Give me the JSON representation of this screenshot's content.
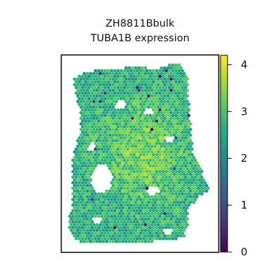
{
  "chart_data": {
    "type": "heatmap",
    "title": "ZH8811Bbulk",
    "subtitle": "TUBA1B expression",
    "xlabel": "",
    "ylabel": "",
    "colormap": "viridis",
    "colorbar": {
      "range": [
        0,
        4.2
      ],
      "ticks": [
        0,
        1,
        2,
        3,
        4
      ],
      "tick_labels": [
        "0",
        "1",
        "2",
        "3",
        "4"
      ],
      "placement": "right"
    },
    "spot_value_range_typical": [
      2.0,
      3.8
    ],
    "low_outlier_spots_approx": 25,
    "frame": "box"
  }
}
